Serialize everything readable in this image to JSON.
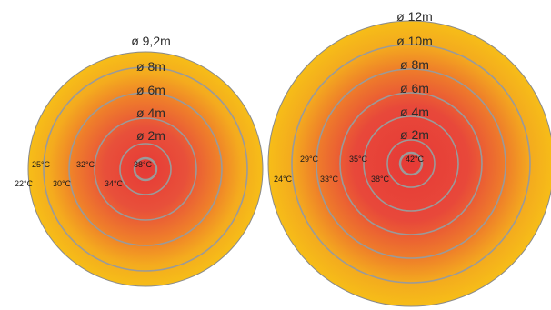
{
  "colors": {
    "hot": "#e8423a",
    "mid": "#ee7a2a",
    "warm": "#f5b51a",
    "ring": "#9a9a9a",
    "border": "#8a8a8a"
  },
  "diagrams": [
    {
      "name": "small-heat-zone",
      "diameter_labels": [
        "ø 9,2m",
        "ø 8m",
        "ø 6m",
        "ø 4m",
        "ø 2m"
      ],
      "temperature_labels": [
        "25°C",
        "32°C",
        "38°C",
        "22°C",
        "30°C",
        "34°C"
      ]
    },
    {
      "name": "large-heat-zone",
      "diameter_labels": [
        "ø 12m",
        "ø 10m",
        "ø 8m",
        "ø 6m",
        "ø 4m",
        "ø 2m"
      ],
      "temperature_labels": [
        "29°C",
        "35°C",
        "42°C",
        "24°C",
        "33°C",
        "38°C"
      ]
    }
  ]
}
